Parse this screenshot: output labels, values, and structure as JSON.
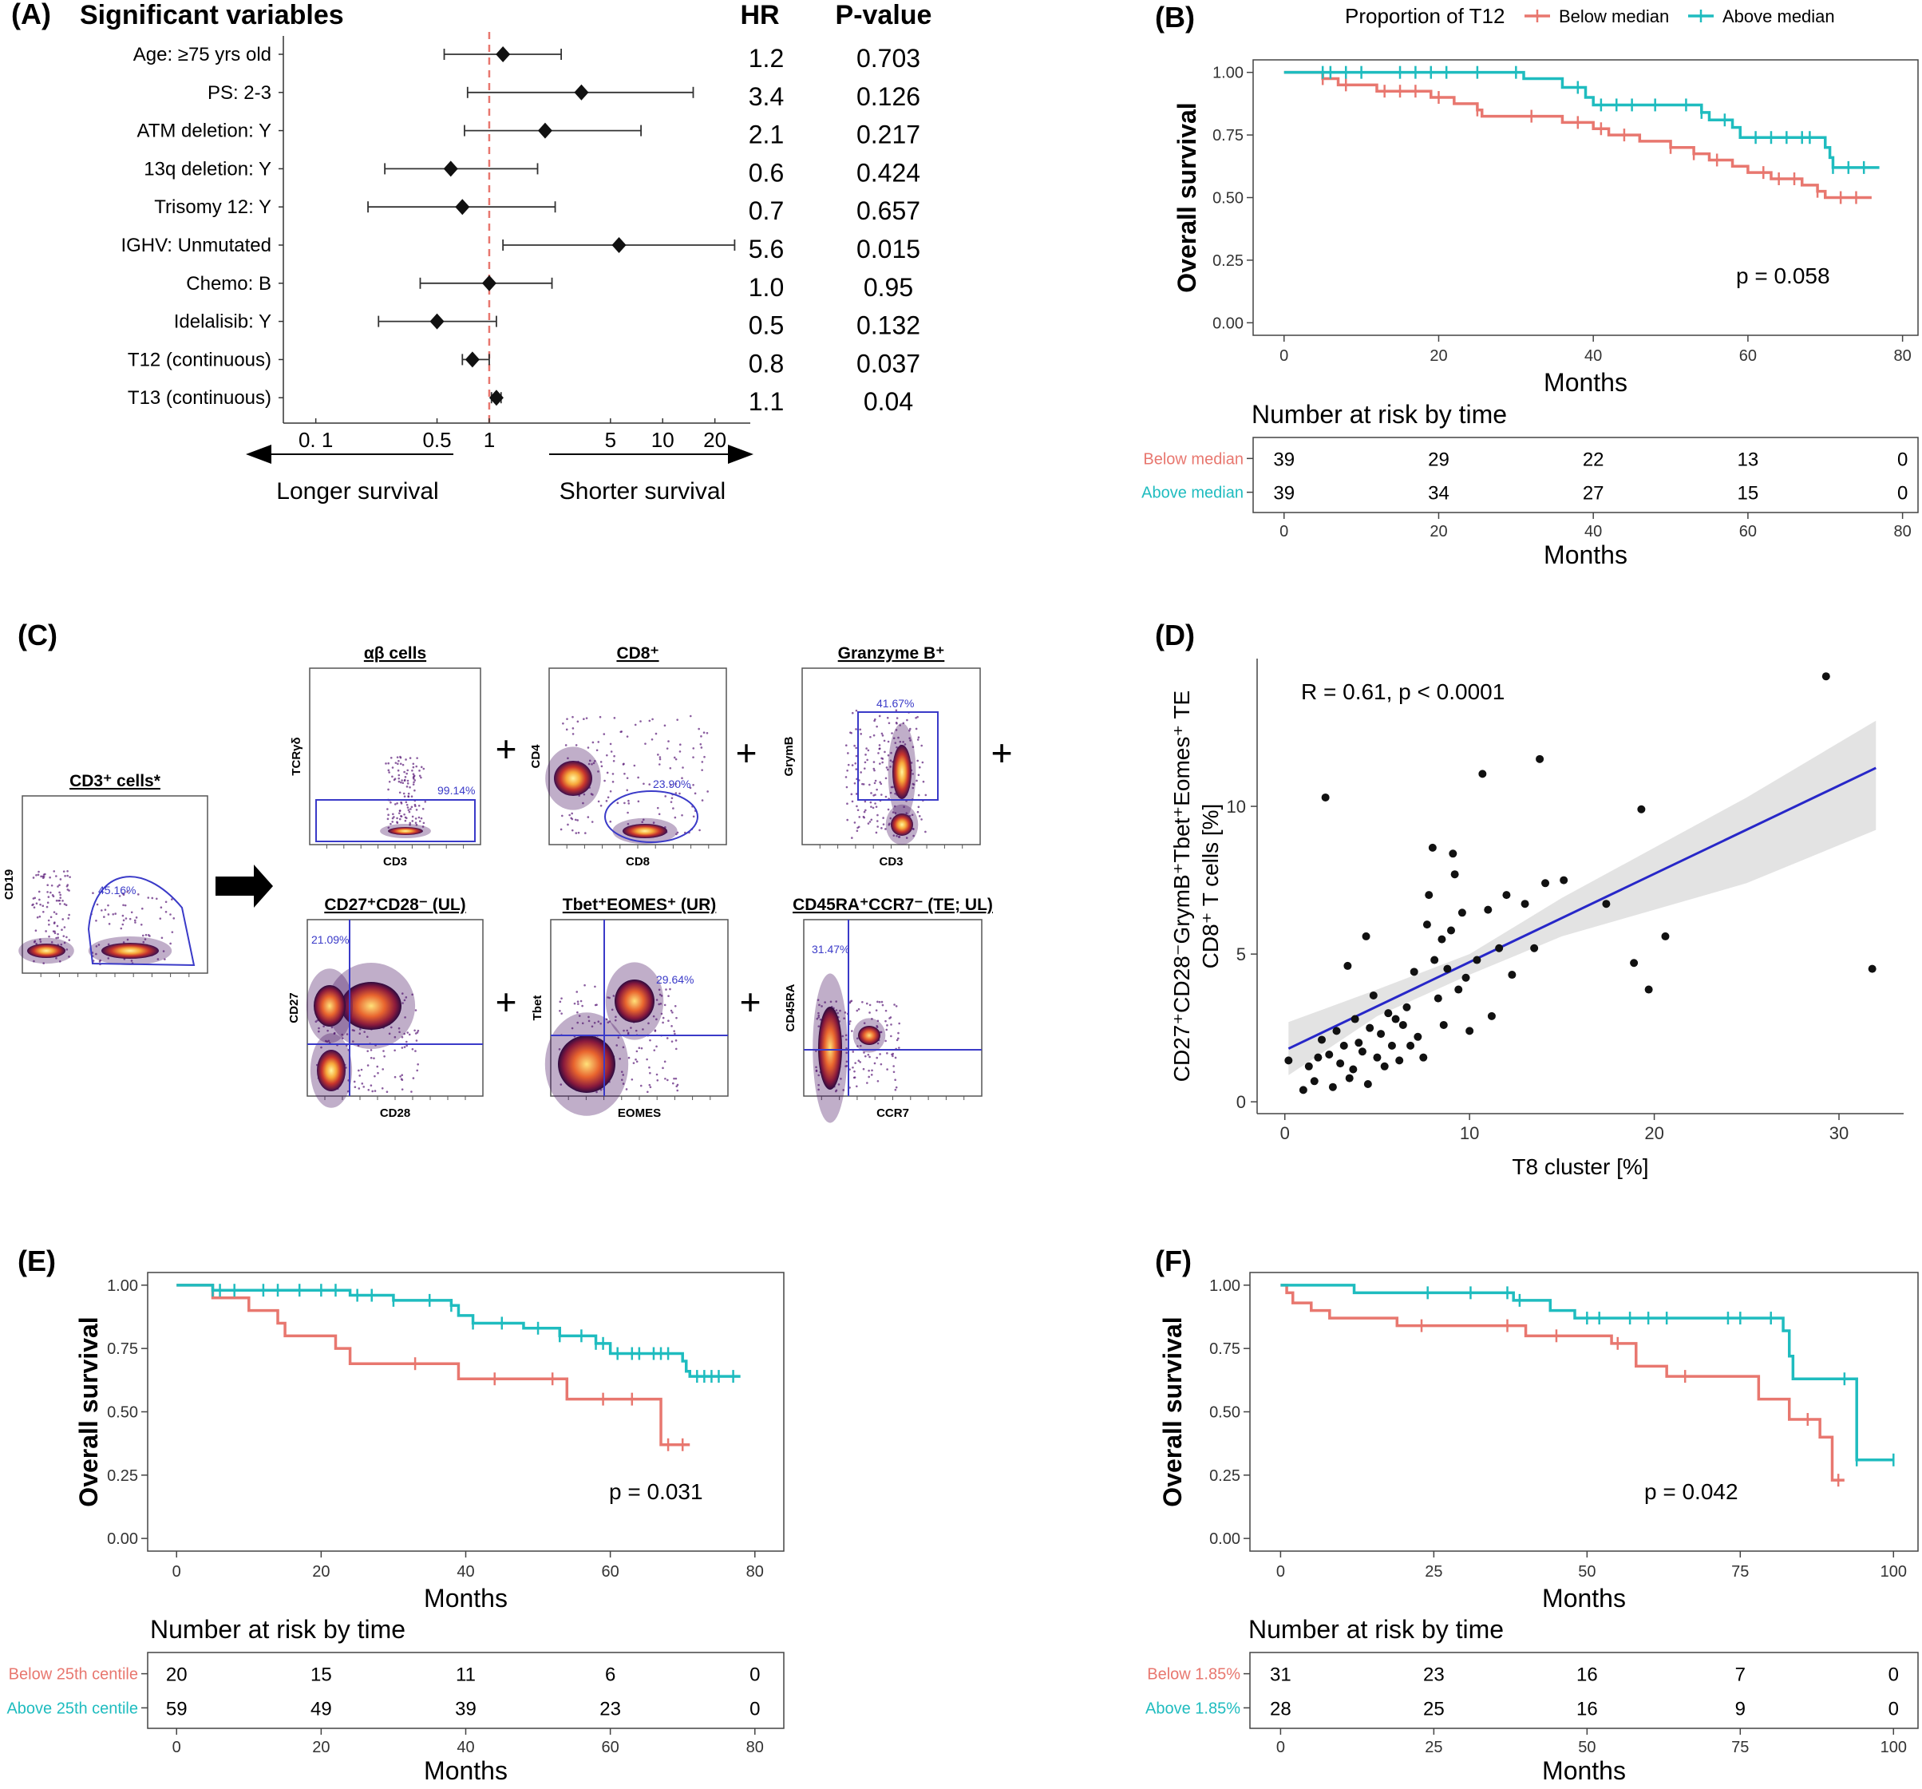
{
  "colors": {
    "below": "#e8776f",
    "above": "#1fbcbf",
    "ref_line": "#e8776f",
    "fit_line": "#2727c8",
    "gate": "#3a3ac8"
  },
  "chart_data": [
    {
      "id": "A",
      "type": "forest",
      "panel_label": "(A)",
      "title": "Significant variables",
      "hr_header": "HR",
      "p_header": "P-value",
      "rows": [
        {
          "label": "Age:  ≥75 yrs old",
          "hr": 1.2,
          "lo": 0.55,
          "hi": 2.6,
          "hr_text": "1.2",
          "p_text": "0.703"
        },
        {
          "label": "PS: 2-3",
          "hr": 3.4,
          "lo": 0.75,
          "hi": 15,
          "hr_text": "3.4",
          "p_text": "0.126"
        },
        {
          "label": "ATM deletion: Y",
          "hr": 2.1,
          "lo": 0.72,
          "hi": 7.5,
          "hr_text": "2.1",
          "p_text": "0.217"
        },
        {
          "label": "13q deletion: Y",
          "hr": 0.6,
          "lo": 0.25,
          "hi": 1.9,
          "hr_text": "0.6",
          "p_text": "0.424"
        },
        {
          "label": "Trisomy 12: Y",
          "hr": 0.7,
          "lo": 0.2,
          "hi": 2.4,
          "hr_text": "0.7",
          "p_text": "0.657"
        },
        {
          "label": "IGHV: Unmutated",
          "hr": 5.6,
          "lo": 1.2,
          "hi": 26,
          "hr_text": "5.6",
          "p_text": "0.015"
        },
        {
          "label": "Chemo: B",
          "hr": 1.0,
          "lo": 0.4,
          "hi": 2.3,
          "hr_text": "1.0",
          "p_text": "0.95"
        },
        {
          "label": "Idelalisib: Y",
          "hr": 0.5,
          "lo": 0.23,
          "hi": 1.1,
          "hr_text": "0.5",
          "p_text": "0.132"
        },
        {
          "label": "T12 (continuous)",
          "hr": 0.8,
          "lo": 0.7,
          "hi": 1.0,
          "hr_text": "0.8",
          "p_text": "0.037"
        },
        {
          "label": "T13 (continuous)",
          "hr": 1.1,
          "lo": 1.03,
          "hi": 1.17,
          "hr_text": "1.1",
          "p_text": "0.04"
        }
      ],
      "xscale": "log",
      "xlim": [
        0.065,
        32
      ],
      "ticks": [
        {
          "v": 0.1,
          "t": "0. 1"
        },
        {
          "v": 0.5,
          "t": "0.5"
        },
        {
          "v": 1,
          "t": "1"
        },
        {
          "v": 5,
          "t": "5"
        },
        {
          "v": 10,
          "t": "10"
        },
        {
          "v": 20,
          "t": "20"
        }
      ],
      "left_arrow_label": "Longer survival",
      "right_arrow_label": "Shorter survival"
    },
    {
      "id": "B",
      "type": "kaplan-meier",
      "panel_label": "(B)",
      "legend_title": "Proportion of T12",
      "series": [
        {
          "name": "Below median",
          "color": "below",
          "steps": [
            [
              0,
              1
            ],
            [
              5,
              0.975
            ],
            [
              7,
              0.95
            ],
            [
              12,
              0.925
            ],
            [
              19,
              0.9
            ],
            [
              22,
              0.875
            ],
            [
              25,
              0.85
            ],
            [
              25.6,
              0.825
            ],
            [
              36,
              0.8
            ],
            [
              40,
              0.775
            ],
            [
              42,
              0.75
            ],
            [
              46,
              0.725
            ],
            [
              50,
              0.7
            ],
            [
              53,
              0.675
            ],
            [
              55,
              0.65
            ],
            [
              58,
              0.625
            ],
            [
              60,
              0.6
            ],
            [
              63,
              0.575
            ],
            [
              67,
              0.55
            ],
            [
              69,
              0.525
            ],
            [
              70,
              0.5
            ],
            [
              76,
              0.5
            ]
          ],
          "censors": [
            5,
            8,
            13,
            15,
            17,
            20,
            25,
            32,
            38,
            41,
            44,
            50,
            53,
            56,
            62,
            64,
            66,
            69,
            72,
            74
          ]
        },
        {
          "name": "Above median",
          "color": "above",
          "steps": [
            [
              0,
              1
            ],
            [
              31,
              0.975
            ],
            [
              36,
              0.94
            ],
            [
              39,
              0.9
            ],
            [
              40,
              0.87
            ],
            [
              54,
              0.84
            ],
            [
              55,
              0.81
            ],
            [
              58,
              0.78
            ],
            [
              59,
              0.74
            ],
            [
              70,
              0.7
            ],
            [
              70.6,
              0.66
            ],
            [
              71,
              0.62
            ],
            [
              77,
              0.62
            ]
          ],
          "censors": [
            5,
            6,
            8,
            10,
            15,
            17,
            19,
            21,
            25,
            30,
            38,
            41,
            43,
            45,
            48,
            52,
            54,
            57,
            61,
            63,
            65,
            67,
            68,
            71,
            73,
            75
          ]
        }
      ],
      "ylabel": "Overall survival",
      "xlabel": "Months",
      "xlim": [
        -4,
        82
      ],
      "ylim": [
        -0.05,
        1.05
      ],
      "xticks": [
        0,
        20,
        40,
        60,
        80
      ],
      "yticks": [
        0,
        0.25,
        0.5,
        0.75,
        1
      ],
      "ytick_labels": [
        "0.00",
        "0.25",
        "0.50",
        "0.75",
        "1.00"
      ],
      "p_text": "p = 0.058",
      "risk_title": "Number at risk by time",
      "risk_rows": [
        {
          "label": "Below median",
          "color": "below",
          "values": [
            "39",
            "29",
            "22",
            "13",
            "0"
          ]
        },
        {
          "label": "Above median",
          "color": "above",
          "values": [
            "39",
            "34",
            "27",
            "15",
            "0"
          ]
        }
      ],
      "risk_xlabel": "Months"
    },
    {
      "id": "D",
      "type": "scatter",
      "panel_label": "(D)",
      "annotation": "R = 0.61, p < 0.0001",
      "xlabel": "T8 cluster [%]",
      "ylabel_line1": "CD27⁺CD28⁻GrymB⁺Tbet⁺Eomes⁺ TE",
      "ylabel_line2": "CD8⁺ T cells [%]",
      "xlim": [
        -1.5,
        33.5
      ],
      "ylim": [
        -0.4,
        15
      ],
      "xticks": [
        0,
        10,
        20,
        30
      ],
      "yticks": [
        0,
        5,
        10
      ],
      "fit": {
        "x0": 0.2,
        "y0": 1.8,
        "x1": 32,
        "y1": 11.3
      },
      "points": [
        [
          0.2,
          1.4
        ],
        [
          1.0,
          0.4
        ],
        [
          1.3,
          1.2
        ],
        [
          1.6,
          0.7
        ],
        [
          1.8,
          1.5
        ],
        [
          2.0,
          2.1
        ],
        [
          2.2,
          10.3
        ],
        [
          2.4,
          1.6
        ],
        [
          2.6,
          0.5
        ],
        [
          2.8,
          2.4
        ],
        [
          3.0,
          1.3
        ],
        [
          3.2,
          1.9
        ],
        [
          3.4,
          4.6
        ],
        [
          3.5,
          0.8
        ],
        [
          3.7,
          1.1
        ],
        [
          3.8,
          2.8
        ],
        [
          4.0,
          2.0
        ],
        [
          4.2,
          1.7
        ],
        [
          4.4,
          5.6
        ],
        [
          4.5,
          0.6
        ],
        [
          4.6,
          2.5
        ],
        [
          4.8,
          3.6
        ],
        [
          5.0,
          1.5
        ],
        [
          5.2,
          2.3
        ],
        [
          5.4,
          1.2
        ],
        [
          5.6,
          3.0
        ],
        [
          5.8,
          1.9
        ],
        [
          6.0,
          2.8
        ],
        [
          6.2,
          1.4
        ],
        [
          6.4,
          2.6
        ],
        [
          6.6,
          3.2
        ],
        [
          6.8,
          1.9
        ],
        [
          7.0,
          4.4
        ],
        [
          7.2,
          2.2
        ],
        [
          7.5,
          1.5
        ],
        [
          7.7,
          6.0
        ],
        [
          7.8,
          7.0
        ],
        [
          8.0,
          8.6
        ],
        [
          8.1,
          4.8
        ],
        [
          8.3,
          3.5
        ],
        [
          8.5,
          5.5
        ],
        [
          8.6,
          2.6
        ],
        [
          8.8,
          4.5
        ],
        [
          9.0,
          5.8
        ],
        [
          9.1,
          8.4
        ],
        [
          9.2,
          7.7
        ],
        [
          9.4,
          3.8
        ],
        [
          9.6,
          6.4
        ],
        [
          9.8,
          4.2
        ],
        [
          10.0,
          2.4
        ],
        [
          10.4,
          4.8
        ],
        [
          10.7,
          11.1
        ],
        [
          11.0,
          6.5
        ],
        [
          11.2,
          2.9
        ],
        [
          11.6,
          5.2
        ],
        [
          12.0,
          7.0
        ],
        [
          12.3,
          4.3
        ],
        [
          13.0,
          6.7
        ],
        [
          13.5,
          5.2
        ],
        [
          13.8,
          11.6
        ],
        [
          14.1,
          7.4
        ],
        [
          15.1,
          7.5
        ],
        [
          17.4,
          6.7
        ],
        [
          18.9,
          4.7
        ],
        [
          19.3,
          9.9
        ],
        [
          19.7,
          3.8
        ],
        [
          20.6,
          5.6
        ],
        [
          29.3,
          14.4
        ],
        [
          31.8,
          4.5
        ]
      ]
    },
    {
      "id": "E",
      "type": "kaplan-meier",
      "panel_label": "(E)",
      "series": [
        {
          "name": "Below 25th centile",
          "color": "below",
          "steps": [
            [
              0,
              1
            ],
            [
              5,
              0.95
            ],
            [
              10,
              0.9
            ],
            [
              14,
              0.85
            ],
            [
              15,
              0.8
            ],
            [
              22,
              0.75
            ],
            [
              24,
              0.69
            ],
            [
              39,
              0.63
            ],
            [
              54,
              0.55
            ],
            [
              67,
              0.37
            ],
            [
              71,
              0.37
            ]
          ],
          "censors": [
            33,
            44,
            52,
            59,
            63,
            68,
            70
          ]
        },
        {
          "name": "Above 25th centile",
          "color": "above",
          "steps": [
            [
              0,
              1
            ],
            [
              5,
              0.98
            ],
            [
              24,
              0.96
            ],
            [
              30,
              0.94
            ],
            [
              38,
              0.92
            ],
            [
              39,
              0.88
            ],
            [
              41,
              0.85
            ],
            [
              48,
              0.83
            ],
            [
              53,
              0.8
            ],
            [
              58,
              0.77
            ],
            [
              60,
              0.73
            ],
            [
              70,
              0.7
            ],
            [
              70.5,
              0.66
            ],
            [
              71,
              0.64
            ],
            [
              78,
              0.64
            ]
          ],
          "censors": [
            5,
            6,
            8,
            12,
            14,
            17,
            20,
            22,
            25,
            27,
            30,
            35,
            38,
            41,
            45,
            50,
            53,
            56,
            58,
            59,
            61,
            63,
            64,
            66,
            67,
            68,
            72,
            73,
            74,
            75,
            77
          ]
        }
      ],
      "ylabel": "Overall survival",
      "xlabel": "Months",
      "xlim": [
        -4,
        84
      ],
      "ylim": [
        -0.05,
        1.05
      ],
      "xticks": [
        0,
        20,
        40,
        60,
        80
      ],
      "yticks": [
        0,
        0.25,
        0.5,
        0.75,
        1
      ],
      "ytick_labels": [
        "0.00",
        "0.25",
        "0.50",
        "0.75",
        "1.00"
      ],
      "p_text": "p = 0.031",
      "risk_title": "Number at risk by time",
      "risk_rows": [
        {
          "label": "Below 25th centile",
          "color": "below",
          "values": [
            "20",
            "15",
            "11",
            "6",
            "0"
          ]
        },
        {
          "label": "Above 25th centile",
          "color": "above",
          "values": [
            "59",
            "49",
            "39",
            "23",
            "0"
          ]
        }
      ],
      "risk_xlabel": "Months"
    },
    {
      "id": "F",
      "type": "kaplan-meier",
      "panel_label": "(F)",
      "series": [
        {
          "name": "Below 1.85%",
          "color": "below",
          "steps": [
            [
              0,
              1
            ],
            [
              1,
              0.97
            ],
            [
              2,
              0.93
            ],
            [
              5,
              0.9
            ],
            [
              8,
              0.87
            ],
            [
              19,
              0.84
            ],
            [
              40,
              0.8
            ],
            [
              54,
              0.77
            ],
            [
              58,
              0.68
            ],
            [
              63,
              0.64
            ],
            [
              78,
              0.55
            ],
            [
              83,
              0.47
            ],
            [
              88,
              0.4
            ],
            [
              90,
              0.23
            ],
            [
              92,
              0.23
            ]
          ],
          "censors": [
            23,
            37,
            45,
            55,
            66,
            86,
            91
          ]
        },
        {
          "name": "Above 1.85%",
          "color": "above",
          "steps": [
            [
              0,
              1
            ],
            [
              12,
              0.97
            ],
            [
              38,
              0.94
            ],
            [
              44,
              0.9
            ],
            [
              48,
              0.87
            ],
            [
              82,
              0.82
            ],
            [
              83,
              0.72
            ],
            [
              83.6,
              0.63
            ],
            [
              94,
              0.31
            ],
            [
              100,
              0.31
            ]
          ],
          "censors": [
            24,
            31,
            37,
            39,
            50,
            52,
            57,
            60,
            63,
            73,
            75,
            80,
            92,
            94,
            100
          ]
        }
      ],
      "ylabel": "Overall survival",
      "xlabel": "Months",
      "xlim": [
        -5,
        104
      ],
      "ylim": [
        -0.05,
        1.05
      ],
      "xticks": [
        0,
        25,
        50,
        75,
        100
      ],
      "yticks": [
        0,
        0.25,
        0.5,
        0.75,
        1
      ],
      "ytick_labels": [
        "0.00",
        "0.25",
        "0.50",
        "0.75",
        "1.00"
      ],
      "p_text": "p = 0.042",
      "risk_title": "Number at risk by time",
      "risk_rows": [
        {
          "label": "Below 1.85%",
          "color": "below",
          "values": [
            "31",
            "23",
            "16",
            "7",
            "0"
          ]
        },
        {
          "label": "Above 1.85%",
          "color": "above",
          "values": [
            "28",
            "25",
            "16",
            "9",
            "0"
          ]
        }
      ],
      "risk_xlabel": "Months"
    }
  ],
  "flow": {
    "panel_label": "(C)",
    "plus": "+",
    "gates": [
      {
        "id": "cd3",
        "title": "CD3⁺ cells*",
        "x_label": "",
        "y_label": "CD19",
        "pct": "45.16%"
      },
      {
        "id": "ab",
        "title": "αβ cells",
        "x_label": "CD3",
        "y_label": "TCRγδ",
        "pct": "99.14%"
      },
      {
        "id": "cd8",
        "title": "CD8⁺",
        "x_label": "CD8",
        "y_label": "CD4",
        "pct": "23.90%"
      },
      {
        "id": "grz",
        "title": "Granzyme B⁺",
        "x_label": "CD3",
        "y_label": "GrymB",
        "pct": "41.67%"
      },
      {
        "id": "cd27",
        "title": "CD27⁺CD28⁻ (UL)",
        "x_label": "CD28",
        "y_label": "CD27",
        "pct": "21.09%"
      },
      {
        "id": "tbet",
        "title": "Tbet⁺EOMES⁺ (UR)",
        "x_label": "EOMES",
        "y_label": "Tbet",
        "pct": "29.64%"
      },
      {
        "id": "cd45",
        "title": "CD45RA⁺CCR7⁻ (TE; UL)",
        "x_label": "CCR7",
        "y_label": "CD45RA",
        "pct": "31.47%"
      }
    ]
  }
}
